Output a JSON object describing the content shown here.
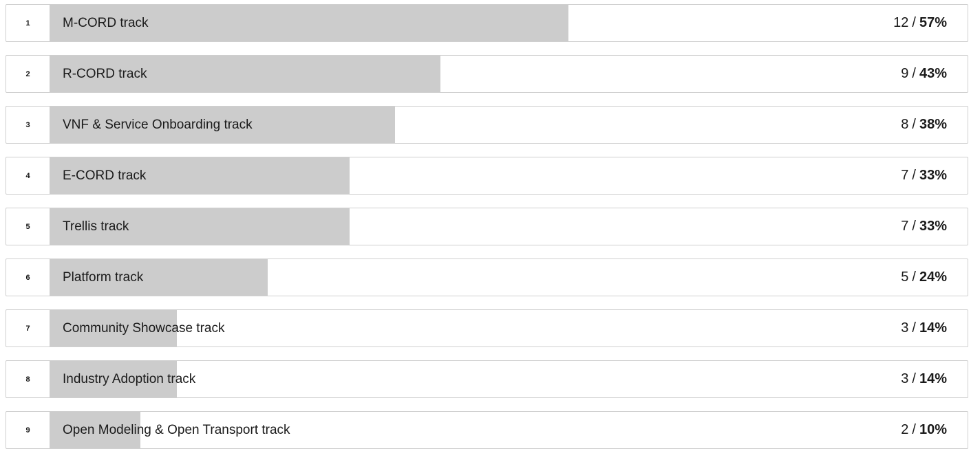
{
  "separator": "/",
  "items": [
    {
      "rank": "1",
      "label": "M-CORD track",
      "count": "12",
      "percent": "57%",
      "fraction": 0.57
    },
    {
      "rank": "2",
      "label": "R-CORD track",
      "count": "9",
      "percent": "43%",
      "fraction": 0.43
    },
    {
      "rank": "3",
      "label": "VNF & Service Onboarding track",
      "count": "8",
      "percent": "38%",
      "fraction": 0.38
    },
    {
      "rank": "4",
      "label": "E-CORD track",
      "count": "7",
      "percent": "33%",
      "fraction": 0.33
    },
    {
      "rank": "5",
      "label": "Trellis track",
      "count": "7",
      "percent": "33%",
      "fraction": 0.33
    },
    {
      "rank": "6",
      "label": "Platform track",
      "count": "5",
      "percent": "24%",
      "fraction": 0.24
    },
    {
      "rank": "7",
      "label": "Community Showcase track",
      "count": "3",
      "percent": "14%",
      "fraction": 0.14
    },
    {
      "rank": "8",
      "label": "Industry Adoption track",
      "count": "3",
      "percent": "14%",
      "fraction": 0.14
    },
    {
      "rank": "9",
      "label": "Open Modeling & Open Transport track",
      "count": "2",
      "percent": "10%",
      "fraction": 0.1
    }
  ],
  "colors": {
    "bar_fill": "#cccccc",
    "row_border": "#cfcfcf",
    "text": "#1a1a1a"
  }
}
